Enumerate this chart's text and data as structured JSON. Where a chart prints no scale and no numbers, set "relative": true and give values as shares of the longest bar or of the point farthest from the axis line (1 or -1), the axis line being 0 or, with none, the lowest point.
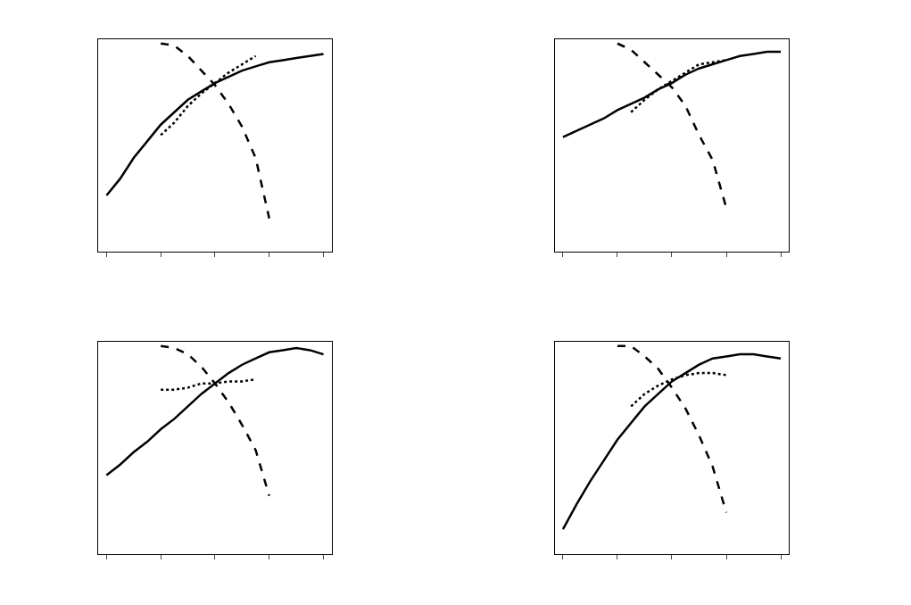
{
  "chart_data": [
    {
      "type": "line",
      "relative": true,
      "categories": [
        null,
        null,
        null,
        null,
        null,
        null,
        null,
        null,
        null,
        null,
        null,
        null,
        null,
        null,
        null,
        null,
        null
      ],
      "series": [
        {
          "color": "#000000",
          "line_style": "solid",
          "values": [
            0.27,
            0.35,
            0.45,
            0.53,
            0.61,
            0.67,
            0.73,
            0.77,
            0.81,
            0.84,
            0.87,
            0.89,
            0.91,
            0.92,
            0.93,
            0.94,
            0.95
          ]
        },
        {
          "color": "#000000",
          "line_style": "dashed",
          "values": [
            null,
            null,
            null,
            null,
            1.0,
            0.99,
            0.94,
            0.87,
            0.8,
            0.71,
            0.6,
            0.45,
            0.16,
            null,
            null,
            null,
            null
          ]
        },
        {
          "color": "#000000",
          "line_style": "dotted",
          "values": [
            null,
            null,
            null,
            null,
            0.56,
            0.62,
            0.7,
            0.76,
            0.81,
            0.86,
            0.9,
            0.94,
            null,
            null,
            null,
            null,
            null
          ]
        }
      ]
    },
    {
      "type": "line",
      "relative": true,
      "categories": [
        null,
        null,
        null,
        null,
        null,
        null,
        null,
        null,
        null,
        null,
        null,
        null,
        null,
        null,
        null,
        null,
        null
      ],
      "series": [
        {
          "color": "#000000",
          "line_style": "solid",
          "values": [
            0.55,
            0.58,
            0.61,
            0.64,
            0.68,
            0.71,
            0.74,
            0.78,
            0.81,
            0.85,
            0.88,
            0.9,
            0.92,
            0.94,
            0.95,
            0.96,
            0.96
          ]
        },
        {
          "color": "#000000",
          "line_style": "dashed",
          "values": [
            null,
            null,
            null,
            null,
            1.0,
            0.97,
            0.91,
            0.85,
            0.79,
            0.7,
            0.56,
            0.44,
            0.21,
            null,
            null,
            null,
            null
          ]
        },
        {
          "color": "#000000",
          "line_style": "dotted",
          "values": [
            null,
            null,
            null,
            null,
            null,
            0.67,
            0.73,
            0.78,
            0.82,
            0.86,
            0.9,
            0.91,
            0.92,
            null,
            null,
            null,
            null
          ]
        }
      ]
    },
    {
      "type": "line",
      "relative": true,
      "categories": [
        null,
        null,
        null,
        null,
        null,
        null,
        null,
        null,
        null,
        null,
        null,
        null,
        null,
        null,
        null,
        null,
        null
      ],
      "series": [
        {
          "color": "#000000",
          "line_style": "solid",
          "values": [
            0.38,
            0.43,
            0.49,
            0.54,
            0.6,
            0.65,
            0.71,
            0.77,
            0.82,
            0.87,
            0.91,
            0.94,
            0.97,
            0.98,
            0.99,
            0.98,
            0.96
          ]
        },
        {
          "color": "#000000",
          "line_style": "dashed",
          "values": [
            null,
            null,
            null,
            null,
            1.0,
            0.99,
            0.96,
            0.9,
            0.82,
            0.73,
            0.62,
            0.5,
            0.28,
            null,
            null,
            null,
            null
          ]
        },
        {
          "color": "#000000",
          "line_style": "dotted",
          "values": [
            null,
            null,
            null,
            null,
            0.79,
            0.79,
            0.8,
            0.82,
            0.82,
            0.83,
            0.83,
            0.84,
            null,
            null,
            null,
            null,
            null
          ]
        }
      ]
    },
    {
      "type": "line",
      "relative": true,
      "categories": [
        null,
        null,
        null,
        null,
        null,
        null,
        null,
        null,
        null,
        null,
        null,
        null,
        null,
        null,
        null,
        null,
        null
      ],
      "series": [
        {
          "color": "#000000",
          "line_style": "solid",
          "values": [
            0.12,
            0.24,
            0.35,
            0.45,
            0.55,
            0.63,
            0.71,
            0.77,
            0.83,
            0.87,
            0.91,
            0.94,
            0.95,
            0.96,
            0.96,
            0.95,
            0.94
          ]
        },
        {
          "color": "#000000",
          "line_style": "dashed",
          "values": [
            null,
            null,
            null,
            null,
            1.0,
            1.0,
            0.95,
            0.89,
            0.8,
            0.7,
            0.57,
            0.42,
            0.2,
            null,
            null,
            null,
            null
          ]
        },
        {
          "color": "#000000",
          "line_style": "dotted",
          "values": [
            null,
            null,
            null,
            null,
            null,
            0.71,
            0.77,
            0.81,
            0.84,
            0.86,
            0.87,
            0.87,
            0.86,
            null,
            null,
            null,
            null
          ]
        }
      ]
    }
  ]
}
